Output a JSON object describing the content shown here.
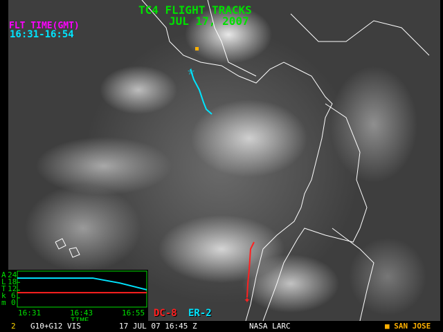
{
  "title": "TC4 FLIGHT TRACKS",
  "date": "JUL 17, 2007",
  "flight_time": {
    "label": "FLT TIME(GMT)",
    "range": "16:31-16:54"
  },
  "colors": {
    "dc8": "#ff2020",
    "er2": "#00e5ff",
    "overlay_text": "#00e000",
    "city": "#ffb000",
    "coastline": "#ffffff"
  },
  "legend": {
    "dc8": "DC-8",
    "er2": "ER-2"
  },
  "status_bar": {
    "frame": "2",
    "sensor": "G10+G12 VIS",
    "datetime": "17 JUL 07 16:45 Z",
    "credit": "NASA LARC",
    "city_marker": "■",
    "city": "SAN JOSE"
  },
  "chart_data": {
    "type": "line",
    "ylabel": "ALT km",
    "ylabel_letters": [
      "A",
      "L",
      "T",
      "k",
      "m"
    ],
    "xlabel": "TIME",
    "x_ticks": [
      "16:31",
      "16:43",
      "16:55"
    ],
    "y_ticks": [
      "24",
      "18",
      "12",
      "6",
      "0"
    ],
    "xlim": [
      "16:31",
      "16:55"
    ],
    "ylim": [
      0,
      24
    ],
    "series": [
      {
        "name": "DC-8",
        "color": "#ff2020",
        "points": [
          [
            "16:31",
            10.1
          ],
          [
            "16:55",
            10.1
          ]
        ]
      },
      {
        "name": "ER-2",
        "color": "#00e5ff",
        "points": [
          [
            "16:31",
            21.3
          ],
          [
            "16:45",
            21.3
          ],
          [
            "16:50",
            17.5
          ],
          [
            "16:55",
            12.3
          ]
        ]
      }
    ]
  }
}
